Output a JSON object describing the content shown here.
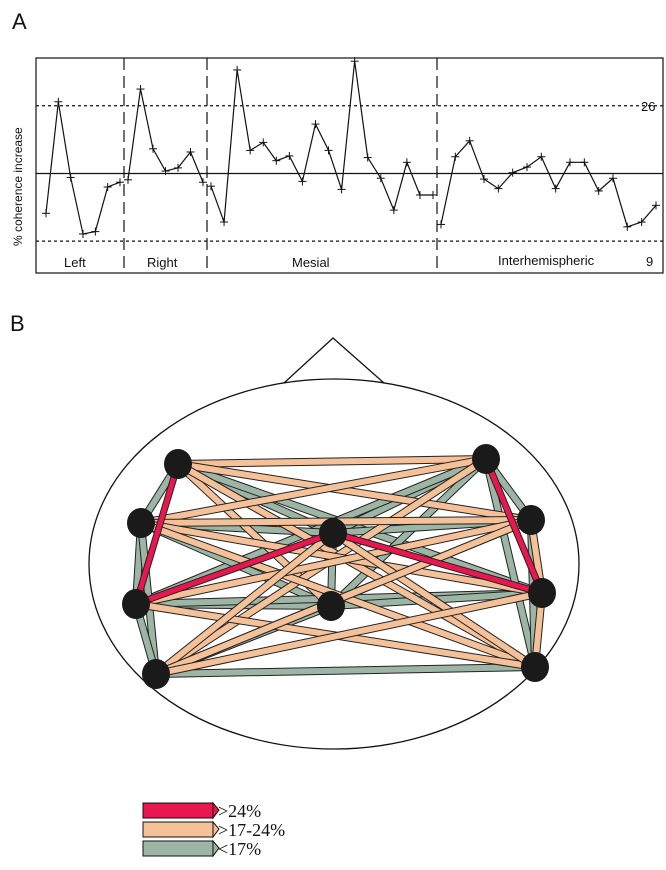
{
  "panel_a": {
    "letter": "A",
    "y_axis_label": "% coherence increase",
    "upper_threshold_label": "26",
    "lower_threshold_label": "9",
    "sections": [
      {
        "name": "Left"
      },
      {
        "name": "Right"
      },
      {
        "name": "Mesial"
      },
      {
        "name": "Interhemispheric"
      }
    ]
  },
  "chart_data": {
    "type": "line",
    "ylabel": "% coherence increase",
    "ylim": [
      5,
      32
    ],
    "reference_lines": [
      {
        "value": 26,
        "style": "dashed",
        "label": "26"
      },
      {
        "value": 17.5,
        "style": "solid"
      },
      {
        "value": 9,
        "style": "dashed",
        "label": "9"
      }
    ],
    "series": [
      {
        "segments": [
          {
            "section": "Left",
            "values": [
              12.5,
              26.5,
              17,
              9.9,
              10.2,
              15.8,
              16.4
            ]
          },
          {
            "section": "Right",
            "values": [
              16.7,
              28.1,
              20.6,
              17.8,
              18.2,
              20.2,
              16.4
            ]
          },
          {
            "section": "Mesial",
            "values": [
              15.9,
              11.4,
              30.5,
              20.4,
              21.4,
              19.1,
              19.7,
              16.5,
              23.7,
              20.4,
              15.5,
              31.6,
              19.5,
              16.9,
              12.9,
              18.9,
              14.8,
              14.8
            ]
          },
          {
            "section": "Interhemispheric",
            "values": [
              11.1,
              19.6,
              21.6,
              16.8,
              15.6,
              17.6,
              18.3,
              19.6,
              15.6,
              18.9,
              18.9,
              15.3,
              16.9,
              10.8,
              11.4,
              13.5
            ]
          }
        ]
      }
    ]
  },
  "panel_b": {
    "letter": "B",
    "nodes": [
      {
        "id": "F3"
      },
      {
        "id": "F4"
      },
      {
        "id": "C3"
      },
      {
        "id": "Cz"
      },
      {
        "id": "C4"
      },
      {
        "id": "T3"
      },
      {
        "id": "Pz"
      },
      {
        "id": "T4"
      },
      {
        "id": "P3"
      },
      {
        "id": "P4"
      }
    ],
    "connections": [
      {
        "from": "F3",
        "to": "T3",
        "level": "high"
      },
      {
        "from": "F4",
        "to": "T4",
        "level": "high"
      },
      {
        "from": "T3",
        "to": "Cz",
        "level": "high"
      },
      {
        "from": "Cz",
        "to": "T4",
        "level": "high"
      },
      {
        "from": "F3",
        "to": "F4",
        "level": "medium"
      },
      {
        "from": "F3",
        "to": "C4",
        "level": "medium"
      },
      {
        "from": "F3",
        "to": "Pz",
        "level": "medium"
      },
      {
        "from": "F3",
        "to": "P4",
        "level": "medium"
      },
      {
        "from": "F4",
        "to": "C3",
        "level": "medium"
      },
      {
        "from": "F4",
        "to": "P3",
        "level": "medium"
      },
      {
        "from": "C3",
        "to": "C4",
        "level": "medium"
      },
      {
        "from": "C3",
        "to": "T4",
        "level": "medium"
      },
      {
        "from": "C3",
        "to": "P4",
        "level": "medium"
      },
      {
        "from": "T3",
        "to": "C4",
        "level": "medium"
      },
      {
        "from": "T3",
        "to": "P4",
        "level": "medium"
      },
      {
        "from": "Cz",
        "to": "P3",
        "level": "medium"
      },
      {
        "from": "Cz",
        "to": "P4",
        "level": "medium"
      },
      {
        "from": "C4",
        "to": "P3",
        "level": "medium"
      },
      {
        "from": "C4",
        "to": "T4",
        "level": "medium"
      },
      {
        "from": "T4",
        "to": "P3",
        "level": "medium"
      },
      {
        "from": "T4",
        "to": "P4",
        "level": "medium"
      },
      {
        "from": "F3",
        "to": "C3",
        "level": "low"
      },
      {
        "from": "F3",
        "to": "Cz",
        "level": "low"
      },
      {
        "from": "F3",
        "to": "T4",
        "level": "low"
      },
      {
        "from": "F4",
        "to": "C4",
        "level": "low"
      },
      {
        "from": "F4",
        "to": "Cz",
        "level": "low"
      },
      {
        "from": "F4",
        "to": "T3",
        "level": "low"
      },
      {
        "from": "F4",
        "to": "P4",
        "level": "low"
      },
      {
        "from": "F4",
        "to": "Pz",
        "level": "low"
      },
      {
        "from": "C3",
        "to": "T3",
        "level": "low"
      },
      {
        "from": "C3",
        "to": "Cz",
        "level": "low"
      },
      {
        "from": "C3",
        "to": "P3",
        "level": "low"
      },
      {
        "from": "C3",
        "to": "Pz",
        "level": "low"
      },
      {
        "from": "Cz",
        "to": "C4",
        "level": "low"
      },
      {
        "from": "T3",
        "to": "P3",
        "level": "low"
      },
      {
        "from": "T3",
        "to": "Pz",
        "level": "low"
      },
      {
        "from": "T3",
        "to": "T4",
        "level": "low"
      },
      {
        "from": "Pz",
        "to": "T4",
        "level": "low"
      },
      {
        "from": "Pz",
        "to": "P3",
        "level": "low"
      },
      {
        "from": "C4",
        "to": "P4",
        "level": "low"
      },
      {
        "from": "P3",
        "to": "P4",
        "level": "low"
      },
      {
        "from": "P3",
        "to": "C4",
        "level": "low"
      },
      {
        "from": "Cz",
        "to": "Pz",
        "level": "low"
      }
    ],
    "legend": [
      {
        "level": "high",
        "label": ">24%",
        "color": "#e8174f"
      },
      {
        "level": "medium",
        "label": ">17-24%",
        "color": "#f5c198"
      },
      {
        "level": "low",
        "label": "<17%",
        "color": "#9db5a5"
      }
    ]
  },
  "colors": {
    "line": "#111111",
    "node": "#1a1a1a",
    "high": "#e8174f",
    "medium": "#f5c198",
    "low": "#9db5a5"
  }
}
